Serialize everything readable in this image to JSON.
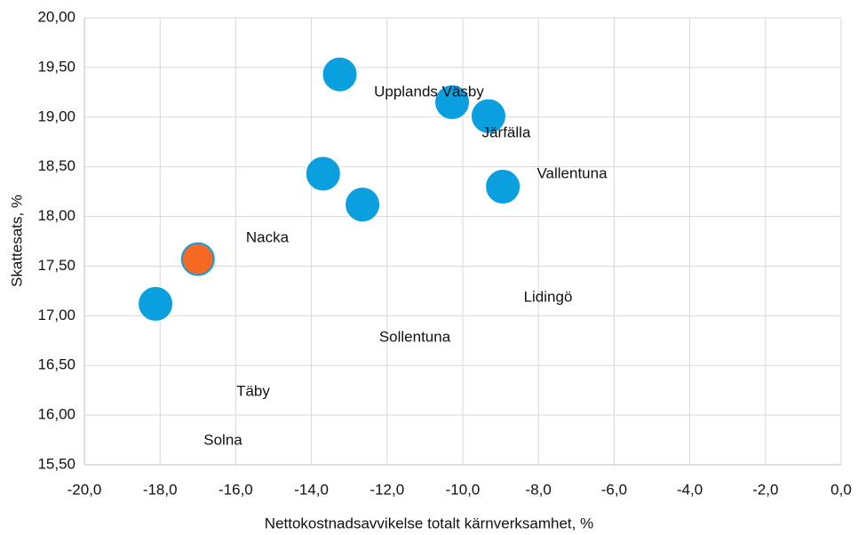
{
  "chart_data": {
    "type": "scatter",
    "xlabel": "Nettokostnadsavvikelse totalt kärnverksamhet, %",
    "ylabel": "Skattesats, %",
    "x": [
      -13.25,
      -10.28,
      -9.32,
      -8.94,
      -13.69,
      -12.65,
      -17.0,
      -18.12
    ],
    "values": [
      19.43,
      19.15,
      19.01,
      18.3,
      18.43,
      18.12,
      17.57,
      17.12
    ],
    "colors": [
      "#0aa0e0",
      "#0aa0e0",
      "#0aa0e0",
      "#0aa0e0",
      "#0aa0e0",
      "#0aa0e0",
      "#f86a24",
      "#0aa0e0"
    ],
    "annotations": [
      "Upplands Väsby",
      "Järfälla",
      "Vallentuna",
      "Nacka",
      "Lidingö",
      "Sollentuna",
      "Täby",
      "Solna"
    ],
    "xlim": [
      -20,
      0
    ],
    "xticks": [
      {
        "value": -20,
        "label": "-20,0"
      },
      {
        "value": -18,
        "label": "-18,0"
      },
      {
        "value": -16,
        "label": "-16,0"
      },
      {
        "value": -14,
        "label": "-14,0"
      },
      {
        "value": -12,
        "label": "-12,0"
      },
      {
        "value": -10,
        "label": "-10,0"
      },
      {
        "value": -8,
        "label": "-8,0"
      },
      {
        "value": -6,
        "label": "-6,0"
      },
      {
        "value": -4,
        "label": "-4,0"
      },
      {
        "value": -2,
        "label": "-2,0"
      },
      {
        "value": 0,
        "label": "0,0"
      }
    ],
    "ylim": [
      15.5,
      20
    ],
    "yticks": [
      {
        "value": 15.5,
        "label": "15,50"
      },
      {
        "value": 16,
        "label": "16,00"
      },
      {
        "value": 16.5,
        "label": "16,50"
      },
      {
        "value": 17,
        "label": "17,00"
      },
      {
        "value": 17.5,
        "label": "17,50"
      },
      {
        "value": 18,
        "label": "18,00"
      },
      {
        "value": 18.5,
        "label": "18,50"
      },
      {
        "value": 19,
        "label": "19,00"
      },
      {
        "value": 19.5,
        "label": "19,50"
      },
      {
        "value": 20,
        "label": "20,00"
      }
    ],
    "grid": true
  }
}
